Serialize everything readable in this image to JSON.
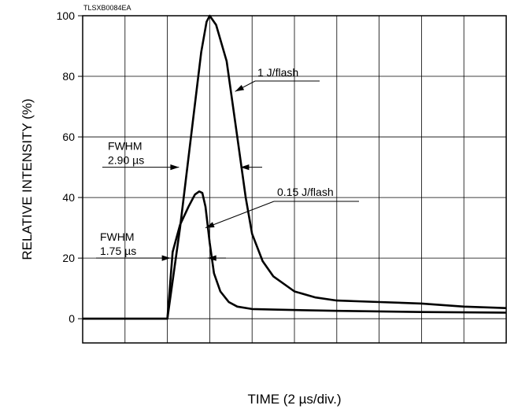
{
  "chart_data": {
    "type": "line",
    "figure_code": "TLSXB0084EA",
    "title": "",
    "xlabel": "TIME (2 µs/div.)",
    "ylabel": "RELATIVE INTENSITY (%)",
    "x_unit": "µs",
    "x_divisions": 10,
    "x_per_division": 2,
    "xlim": [
      0,
      20
    ],
    "ylim": [
      -8,
      100
    ],
    "yticks": [
      0,
      20,
      40,
      60,
      80,
      100
    ],
    "grid": true,
    "legend": "none",
    "series": [
      {
        "name": "1 J/flash",
        "x": [
          0,
          4.0,
          4.6,
          5.2,
          5.6,
          5.85,
          6.0,
          6.3,
          6.8,
          7.3,
          7.7,
          8.0,
          8.5,
          9.0,
          10.0,
          11.0,
          12.0,
          14.0,
          16.0,
          18.0,
          20.0
        ],
        "y": [
          0,
          0,
          30,
          65,
          88,
          98,
          100,
          97,
          85,
          60,
          40,
          28,
          19,
          14,
          9,
          7,
          6,
          5.5,
          5,
          4,
          3.5
        ]
      },
      {
        "name": "0.15 J/flash",
        "x": [
          0,
          4.0,
          4.25,
          4.6,
          5.0,
          5.3,
          5.5,
          5.65,
          5.8,
          6.0,
          6.2,
          6.5,
          6.9,
          7.3,
          8.0,
          9.0,
          12.0,
          16.0,
          20.0
        ],
        "y": [
          0,
          0,
          22,
          31,
          37,
          41,
          42,
          41.5,
          37,
          25,
          15,
          9,
          5.5,
          4,
          3.2,
          3,
          2.6,
          2.2,
          2
        ]
      }
    ],
    "annotations": [
      {
        "series": "1 J/flash",
        "label": "1 J/flash",
        "at": [
          7.2,
          75
        ]
      },
      {
        "series": "0.15 J/flash",
        "label": "0.15 J/flash",
        "at": [
          5.8,
          30
        ]
      },
      {
        "label_line1": "FWHM",
        "label_line2": "2.90 µs",
        "level": 50,
        "x_range": [
          4.55,
          7.45
        ]
      },
      {
        "label_line1": "FWHM",
        "label_line2": "1.75 µs",
        "level": 20,
        "x_range": [
          4.15,
          5.9
        ]
      }
    ]
  }
}
